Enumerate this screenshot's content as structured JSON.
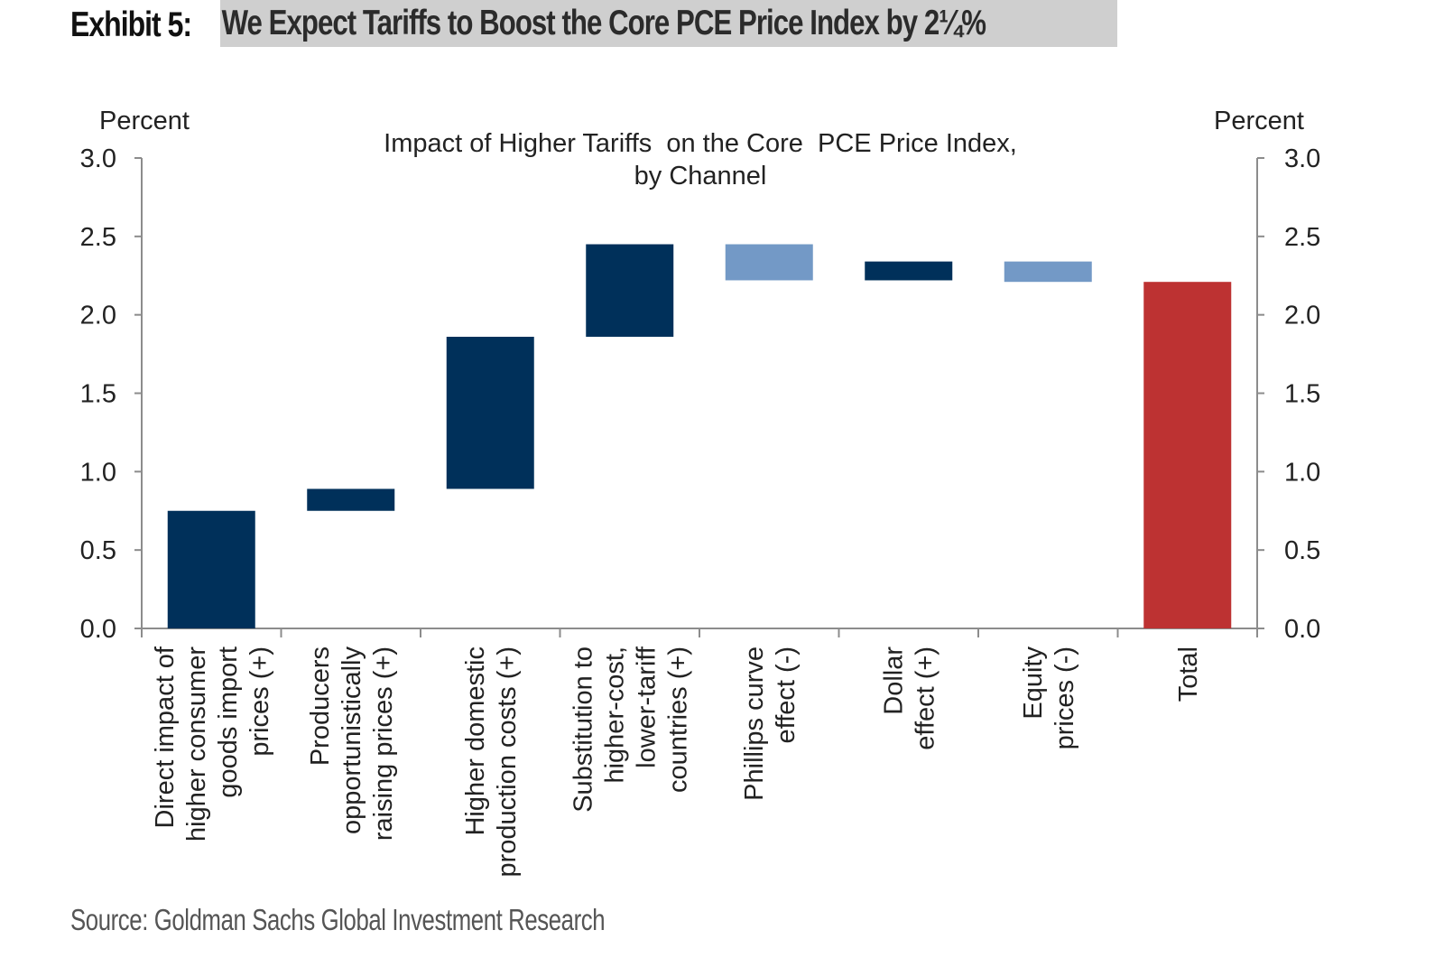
{
  "exhibit": {
    "label": "Exhibit 5:",
    "title": "We Expect Tariffs to Boost the Core PCE Price Index by 2¼%"
  },
  "source": "Source: Goldman Sachs Global Investment Research",
  "chart_data": {
    "type": "waterfall",
    "title_line1": "Impact of Higher Tariffs  on the Core  PCE Price Index,",
    "title_line2": "by Channel",
    "left_axis_label": "Percent",
    "right_axis_label": "Percent",
    "ylim": [
      0,
      3
    ],
    "yticks": [
      "0.0",
      "0.5",
      "1.0",
      "1.5",
      "2.0",
      "2.5",
      "3.0"
    ],
    "grid": false,
    "legend": "none",
    "colors": {
      "positive": "#00305a",
      "negative": "#7399c6",
      "total": "#bd3232",
      "axis": "#8c8c8c"
    },
    "bars": [
      {
        "category_lines": [
          "Direct impact of",
          "higher consumer",
          "goods import",
          "prices (+)"
        ],
        "start": 0.0,
        "end": 0.75,
        "kind": "positive"
      },
      {
        "category_lines": [
          "Producers",
          "opportunistically",
          "raising prices (+)"
        ],
        "start": 0.75,
        "end": 0.89,
        "kind": "positive"
      },
      {
        "category_lines": [
          "Higher domestic",
          "production costs (+)"
        ],
        "start": 0.89,
        "end": 1.86,
        "kind": "positive"
      },
      {
        "category_lines": [
          "Substitution to",
          "higher-cost,",
          "lower-tariff",
          "countries (+)"
        ],
        "start": 1.86,
        "end": 2.45,
        "kind": "positive"
      },
      {
        "category_lines": [
          "Phillips curve",
          "effect (-)"
        ],
        "start": 2.45,
        "end": 2.22,
        "kind": "negative"
      },
      {
        "category_lines": [
          "Dollar",
          "effect (+)"
        ],
        "start": 2.22,
        "end": 2.34,
        "kind": "positive"
      },
      {
        "category_lines": [
          "Equity",
          "prices (-)"
        ],
        "start": 2.34,
        "end": 2.21,
        "kind": "negative"
      },
      {
        "category_lines": [
          "Total"
        ],
        "start": 0.0,
        "end": 2.21,
        "kind": "total"
      }
    ]
  }
}
